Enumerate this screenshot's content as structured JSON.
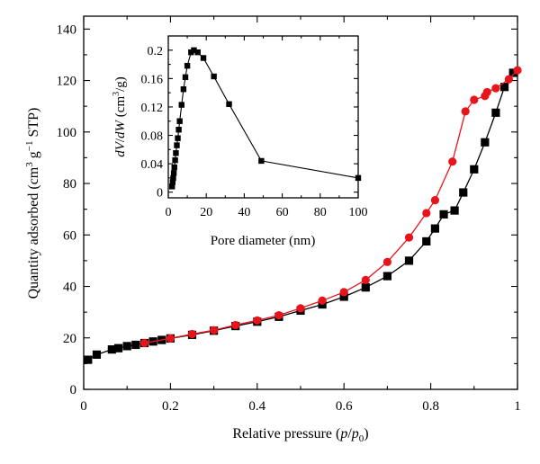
{
  "chart_data": [
    {
      "type": "line",
      "xlabel_main": "Relative pressure (",
      "xlabel_p": "p",
      "xlabel_slash": "/",
      "xlabel_p0": "p",
      "xlabel_sub": "0",
      "xlabel_close": ")",
      "ylabel_prefix": "Quantity adsorbed (cm",
      "ylabel_sup1": "3",
      "ylabel_g": " g",
      "ylabel_sup2": "−1",
      "ylabel_suffix": " STP)",
      "xlim": [
        0,
        1
      ],
      "ylim": [
        0,
        145
      ],
      "xticks": [
        0,
        0.2,
        0.4,
        0.6,
        0.8,
        1
      ],
      "xtick_labels": [
        "0",
        "0.2",
        "0.4",
        "0.6",
        "0.8",
        "1"
      ],
      "yticks": [
        0,
        20,
        40,
        60,
        80,
        100,
        120,
        140
      ],
      "ytick_labels": [
        "0",
        "20",
        "40",
        "60",
        "80",
        "100",
        "120",
        "140"
      ],
      "series": [
        {
          "color": "#000000",
          "marker": "square",
          "x": [
            0.01,
            0.03,
            0.065,
            0.08,
            0.1,
            0.12,
            0.14,
            0.16,
            0.18,
            0.2,
            0.25,
            0.3,
            0.35,
            0.4,
            0.45,
            0.5,
            0.55,
            0.6,
            0.65,
            0.7,
            0.75,
            0.79,
            0.81,
            0.83,
            0.855,
            0.875,
            0.9,
            0.925,
            0.95,
            0.97,
            0.99
          ],
          "y": [
            11.5,
            13.5,
            15.5,
            16,
            16.8,
            17.3,
            18,
            18.6,
            19.2,
            19.8,
            21.2,
            22.8,
            24.6,
            26.3,
            28.2,
            30.6,
            33,
            36,
            39.6,
            44,
            50,
            57.5,
            62.5,
            68,
            69.5,
            76.5,
            85.5,
            96,
            107.5,
            117.5,
            123
          ]
        },
        {
          "color": "#e8141b",
          "marker": "circle",
          "x": [
            0.14,
            0.2,
            0.25,
            0.3,
            0.35,
            0.4,
            0.45,
            0.5,
            0.55,
            0.6,
            0.65,
            0.7,
            0.75,
            0.79,
            0.81,
            0.85,
            0.88,
            0.9,
            0.925,
            0.93,
            0.95,
            0.98,
            1.0
          ],
          "y": [
            18,
            19.8,
            21.5,
            23,
            25,
            26.8,
            28.8,
            31.5,
            34.5,
            37.8,
            42.5,
            49.5,
            59,
            68.5,
            73.5,
            88.5,
            108,
            112.5,
            114,
            115.5,
            117,
            120.5,
            124
          ]
        }
      ]
    },
    {
      "type": "line",
      "xlabel": "Pore diameter (nm)",
      "ylabel_prefix": "dV",
      "ylabel_slash": "/",
      "ylabel_dw": "dW",
      "ylabel_unit_open": " (cm",
      "ylabel_sup": "3",
      "ylabel_unit_close": "/g)",
      "xlim": [
        0,
        100
      ],
      "ylim": [
        -0.008,
        0.22
      ],
      "xticks": [
        0,
        20,
        40,
        60,
        80,
        100
      ],
      "xtick_labels": [
        "0",
        "20",
        "40",
        "60",
        "80",
        "100"
      ],
      "yticks": [
        0,
        0.04,
        0.08,
        0.12,
        0.16,
        0.2
      ],
      "ytick_labels": [
        "0",
        "0.04",
        "0.08",
        "0.12",
        "0.16",
        "0.2"
      ],
      "series": [
        {
          "color": "#000000",
          "marker": "square",
          "x": [
            2.0,
            2.3,
            2.6,
            2.9,
            3.2,
            3.6,
            4.0,
            4.5,
            5.0,
            5.5,
            6.0,
            7.0,
            8.0,
            9.0,
            10.0,
            12.0,
            13.5,
            15.5,
            18.5,
            24.0,
            32.0,
            49.0,
            100.0
          ],
          "y": [
            0.008,
            0.014,
            0.02,
            0.027,
            0.035,
            0.045,
            0.055,
            0.066,
            0.076,
            0.088,
            0.1,
            0.123,
            0.145,
            0.162,
            0.178,
            0.197,
            0.2,
            0.197,
            0.189,
            0.163,
            0.124,
            0.044,
            0.02
          ]
        }
      ]
    }
  ]
}
